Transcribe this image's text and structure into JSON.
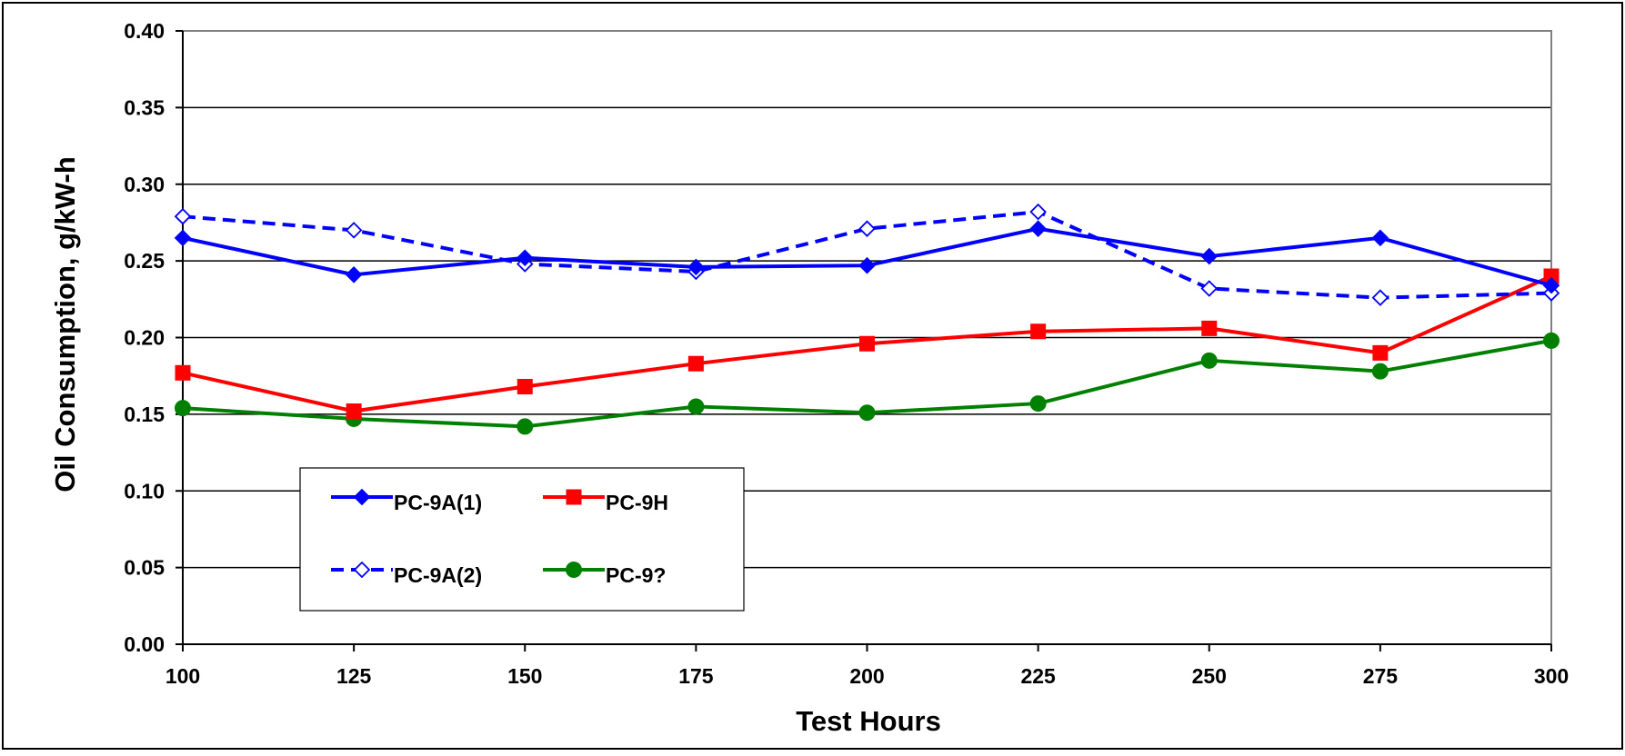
{
  "chart_data": {
    "type": "line",
    "title": "",
    "xlabel": "Test Hours",
    "ylabel": "Oil Consumption, g/kW-h",
    "xlim": [
      100,
      300
    ],
    "ylim": [
      0,
      0.4
    ],
    "x_ticks": [
      "100",
      "125",
      "150",
      "175",
      "200",
      "225",
      "250",
      "275",
      "300"
    ],
    "y_ticks": [
      "0.00",
      "0.05",
      "0.10",
      "0.15",
      "0.20",
      "0.25",
      "0.30",
      "0.35",
      "0.40"
    ],
    "grid": "horizontal",
    "legend_position": "bottom-left",
    "x": [
      100,
      125,
      150,
      175,
      200,
      225,
      250,
      275,
      300
    ],
    "series": [
      {
        "name": "PC-9A(1)",
        "color": "#0000ff",
        "line": "solid",
        "marker": "filled-diamond",
        "values": [
          0.265,
          0.241,
          0.252,
          0.246,
          0.247,
          0.271,
          0.253,
          0.265,
          0.234
        ]
      },
      {
        "name": "PC-9H",
        "color": "#ff0000",
        "line": "solid",
        "marker": "filled-square",
        "values": [
          0.177,
          0.152,
          0.168,
          0.183,
          0.196,
          0.204,
          0.206,
          0.19,
          0.24
        ]
      },
      {
        "name": "PC-9A(2)",
        "color": "#0000ff",
        "line": "dashed",
        "marker": "open-diamond",
        "values": [
          0.279,
          0.27,
          0.248,
          0.243,
          0.271,
          0.282,
          0.232,
          0.226,
          0.229
        ]
      },
      {
        "name": "PC-9?",
        "color": "#008000",
        "line": "solid",
        "marker": "filled-circle",
        "values": [
          0.154,
          0.147,
          0.142,
          0.155,
          0.151,
          0.157,
          0.185,
          0.178,
          0.198
        ]
      }
    ]
  }
}
